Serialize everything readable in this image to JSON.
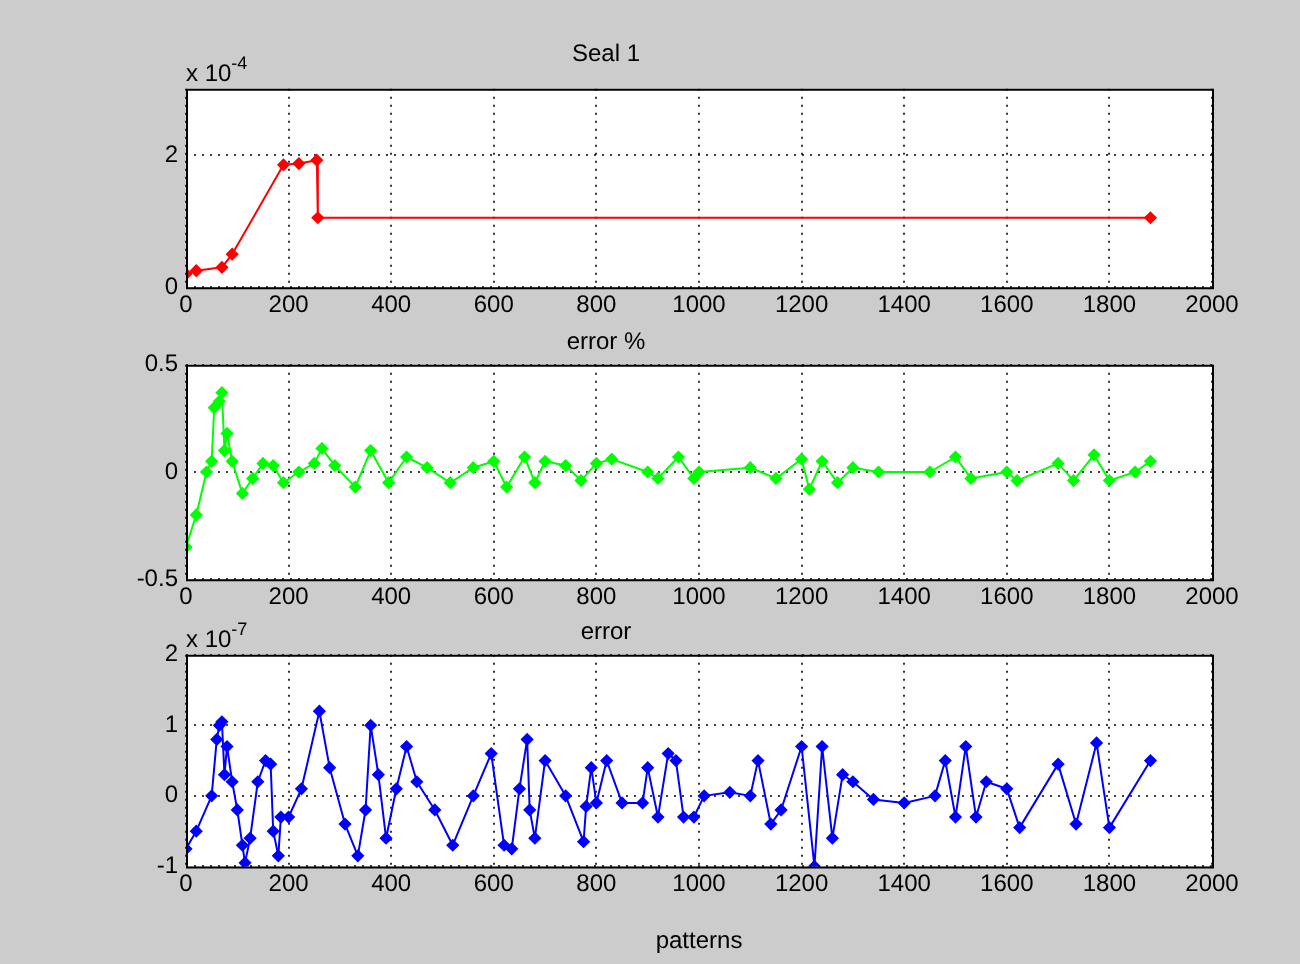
{
  "chart_data": [
    {
      "type": "line",
      "title": "Seal 1",
      "annotations": [
        "x 10$^{-4}$"
      ],
      "xlim": [
        0,
        2000
      ],
      "xticks": [
        0,
        200,
        400,
        600,
        800,
        1000,
        1200,
        1400,
        1600,
        1800,
        2000
      ],
      "ylim": [
        0,
        3
      ],
      "yticks": [
        0,
        2
      ],
      "grid": true,
      "marker": "diamond",
      "line_style": "solid",
      "series": [
        {
          "color": "#ff0000",
          "x": [
            0,
            20,
            70,
            90,
            190,
            220,
            255,
            257,
            1880
          ],
          "values": [
            0.2,
            0.25,
            0.3,
            0.5,
            1.85,
            1.87,
            1.92,
            1.05,
            1.05
          ]
        }
      ]
    },
    {
      "type": "line",
      "title": "error %",
      "xlim": [
        0,
        2000
      ],
      "xticks": [
        0,
        200,
        400,
        600,
        800,
        1000,
        1200,
        1400,
        1600,
        1800,
        2000
      ],
      "ylim": [
        -0.5,
        0.5
      ],
      "yticks": [
        -0.5,
        0,
        0.5
      ],
      "grid": true,
      "marker": "diamond",
      "line_style": "solid",
      "series": [
        {
          "color": "#00ff00",
          "x": [
            0,
            20,
            40,
            50,
            55,
            65,
            70,
            75,
            80,
            90,
            110,
            130,
            150,
            170,
            190,
            220,
            250,
            265,
            290,
            330,
            360,
            395,
            430,
            470,
            515,
            560,
            600,
            625,
            660,
            680,
            700,
            740,
            770,
            800,
            830,
            900,
            920,
            960,
            990,
            1000,
            1100,
            1150,
            1200,
            1215,
            1240,
            1270,
            1300,
            1350,
            1450,
            1500,
            1530,
            1600,
            1620,
            1700,
            1730,
            1770,
            1800,
            1850,
            1880
          ],
          "values": [
            -0.35,
            -0.2,
            0,
            0.05,
            0.3,
            0.33,
            0.37,
            0.1,
            0.18,
            0.05,
            -0.1,
            -0.03,
            0.04,
            0.03,
            -0.05,
            0,
            0.04,
            0.11,
            0.03,
            -0.07,
            0.1,
            -0.05,
            0.07,
            0.02,
            -0.05,
            0.02,
            0.05,
            -0.07,
            0.07,
            -0.05,
            0.05,
            0.03,
            -0.04,
            0.04,
            0.06,
            0,
            -0.03,
            0.07,
            -0.03,
            0,
            0.02,
            -0.03,
            0.06,
            -0.08,
            0.05,
            -0.05,
            0.02,
            0,
            0,
            0.07,
            -0.03,
            0,
            -0.04,
            0.04,
            -0.04,
            0.08,
            -0.04,
            0,
            0.05
          ]
        }
      ]
    },
    {
      "type": "line",
      "title": "error",
      "xlabel": "patterns",
      "annotations": [
        "x 10$^{-7}$"
      ],
      "xlim": [
        0,
        2000
      ],
      "xticks": [
        0,
        200,
        400,
        600,
        800,
        1000,
        1200,
        1400,
        1600,
        1800,
        2000
      ],
      "ylim": [
        -1,
        2
      ],
      "yticks": [
        -1,
        0,
        1,
        2
      ],
      "grid": true,
      "marker": "diamond",
      "line_style": "solid",
      "series": [
        {
          "color": "#0000ff",
          "x": [
            0,
            20,
            50,
            60,
            65,
            70,
            75,
            80,
            90,
            100,
            110,
            115,
            125,
            140,
            155,
            165,
            170,
            180,
            185,
            200,
            225,
            260,
            280,
            310,
            335,
            350,
            360,
            375,
            390,
            410,
            430,
            450,
            485,
            520,
            560,
            595,
            620,
            635,
            650,
            665,
            670,
            680,
            700,
            740,
            775,
            780,
            790,
            800,
            820,
            850,
            890,
            900,
            920,
            940,
            955,
            970,
            990,
            1010,
            1060,
            1100,
            1115,
            1140,
            1160,
            1200,
            1225,
            1240,
            1260,
            1280,
            1300,
            1340,
            1400,
            1460,
            1480,
            1500,
            1520,
            1540,
            1560,
            1600,
            1625,
            1700,
            1735,
            1775,
            1800,
            1880
          ],
          "values": [
            -0.75,
            -0.5,
            0,
            0.8,
            1.0,
            1.05,
            0.3,
            0.7,
            0.2,
            -0.2,
            -0.7,
            -0.95,
            -0.6,
            0.2,
            0.5,
            0.45,
            -0.5,
            -0.85,
            -0.3,
            -0.3,
            0.1,
            1.2,
            0.4,
            -0.4,
            -0.85,
            -0.2,
            1.0,
            0.3,
            -0.6,
            0.1,
            0.7,
            0.2,
            -0.2,
            -0.7,
            0,
            0.6,
            -0.7,
            -0.75,
            0.1,
            0.8,
            -0.2,
            -0.6,
            0.5,
            0,
            -0.65,
            -0.15,
            0.4,
            -0.1,
            0.5,
            -0.1,
            -0.1,
            0.4,
            -0.3,
            0.6,
            0.5,
            -0.3,
            -0.3,
            0,
            0.05,
            0,
            0.5,
            -0.4,
            -0.2,
            0.7,
            -1.0,
            0.7,
            -0.6,
            0.3,
            0.2,
            -0.05,
            -0.1,
            0,
            0.5,
            -0.3,
            0.7,
            -0.3,
            0.2,
            0.1,
            -0.45,
            0.45,
            -0.4,
            0.75,
            -0.45,
            0.5
          ]
        }
      ]
    }
  ]
}
